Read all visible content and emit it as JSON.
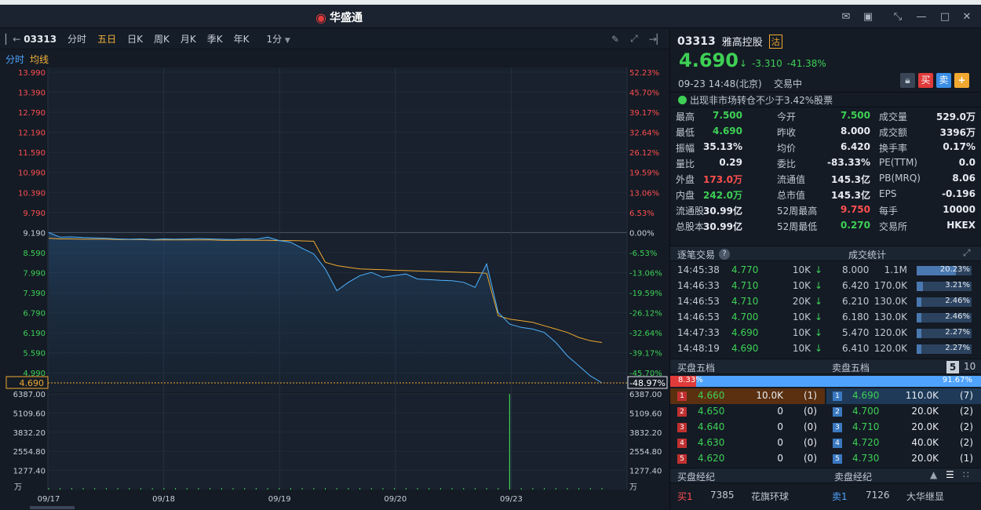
{
  "window": {
    "brand": "华盛通",
    "controls": [
      "mail-icon",
      "shirt-icon",
      "collapse-icon",
      "minimize-icon",
      "maximize-icon",
      "close-icon"
    ]
  },
  "toolbar": {
    "code": "03313",
    "tabs": [
      "分时",
      "五日",
      "日K",
      "周K",
      "月K",
      "季K",
      "年K"
    ],
    "active_tab": "五日",
    "interval": "1分",
    "sub_tabs": [
      "分时",
      "均线"
    ]
  },
  "chart_data": {
    "type": "line",
    "price_left_ticks": [
      "13.990",
      "13.390",
      "12.790",
      "12.190",
      "11.590",
      "10.990",
      "10.390",
      "9.790",
      "9.190",
      "8.590",
      "7.990",
      "7.390",
      "6.790",
      "6.190",
      "5.590",
      "4.990"
    ],
    "price_right_ticks": [
      "52.23%",
      "45.70%",
      "39.17%",
      "32.64%",
      "26.12%",
      "19.59%",
      "13.06%",
      "6.53%",
      "0.00%",
      "-6.53%",
      "-13.06%",
      "-19.59%",
      "-26.12%",
      "-32.64%",
      "-39.17%",
      "-45.70%"
    ],
    "current_price_label": "4.690",
    "current_pct_label": "-48.97%",
    "volume_ticks": [
      "6387.00",
      "5109.60",
      "3832.20",
      "2554.80",
      "1277.40"
    ],
    "volume_unit": "万",
    "x_labels": [
      "09/17",
      "09/18",
      "09/19",
      "09/20",
      "09/23"
    ],
    "ylim": [
      4.69,
      13.99
    ],
    "prev_close": 9.19,
    "series": [
      {
        "values": [
          9.19,
          9.05,
          9.06,
          9.04,
          9.03,
          9.02,
          9.0,
          8.99,
          9.0,
          8.98,
          9.0,
          8.99,
          9.0,
          9.01,
          9.0,
          8.99,
          8.98,
          9.0,
          8.99,
          9.05,
          8.95,
          8.9,
          8.72,
          8.55,
          8.1,
          7.45,
          7.7,
          7.9,
          8.0,
          7.85,
          7.9,
          7.95,
          7.8,
          7.78,
          7.76,
          7.75,
          7.7,
          7.55,
          8.25,
          6.8,
          6.45,
          6.35,
          6.3,
          6.2,
          5.9,
          5.5,
          5.2,
          4.9,
          4.69
        ]
      },
      {
        "values": [
          9.02,
          9.0,
          9.0,
          8.99,
          8.99,
          8.99,
          8.98,
          8.98,
          8.98,
          8.97,
          8.97,
          8.97,
          8.97,
          8.97,
          8.97,
          8.96,
          8.96,
          8.96,
          8.96,
          8.96,
          8.95,
          8.95,
          8.94,
          8.93,
          8.3,
          8.2,
          8.15,
          8.1,
          8.09,
          8.08,
          8.06,
          8.05,
          8.04,
          8.03,
          8.02,
          8.01,
          8.0,
          7.99,
          7.97,
          6.7,
          6.6,
          6.55,
          6.5,
          6.4,
          6.3,
          6.2,
          6.05,
          5.95,
          5.9
        ]
      }
    ],
    "volume_spike": 6387
  },
  "quote": {
    "code": "03313",
    "name": "雅高控股",
    "badge": "沽",
    "price": "4.690",
    "change": "-3.310",
    "change_pct": "-41.38%",
    "time": "09-23  14:48(北京)",
    "status": "交易中",
    "notice": "出现非市场转仓不少于3.42%股票",
    "buttons": [
      "买",
      "卖",
      "+"
    ],
    "stats": [
      [
        "最高",
        "7.500",
        "g",
        "今开",
        "7.500",
        "g",
        "成交量",
        "529.0万",
        "w"
      ],
      [
        "最低",
        "4.690",
        "g",
        "昨收",
        "8.000",
        "w",
        "成交额",
        "3396万",
        "w"
      ],
      [
        "振幅",
        "35.13%",
        "w",
        "均价",
        "6.420",
        "w",
        "换手率",
        "0.17%",
        "w"
      ],
      [
        "量比",
        "0.29",
        "w",
        "委比",
        "-83.33%",
        "w",
        "PE(TTM)",
        "0.0",
        "w"
      ],
      [
        "外盘",
        "173.0万",
        "r",
        "流通值",
        "145.3亿",
        "w",
        "PB(MRQ)",
        "8.06",
        "w"
      ],
      [
        "内盘",
        "242.0万",
        "g",
        "总市值",
        "145.3亿",
        "w",
        "EPS",
        "-0.196",
        "w"
      ],
      [
        "流通股",
        "30.99亿",
        "w",
        "52周最高",
        "9.750",
        "r",
        "每手",
        "10000",
        "w"
      ],
      [
        "总股本",
        "30.99亿",
        "w",
        "52周最低",
        "0.270",
        "g",
        "交易所",
        "HKEX",
        "w"
      ]
    ]
  },
  "trades": {
    "title": "逐笔交易",
    "stats_title": "成交统计",
    "rows": [
      [
        "14:45:38",
        "4.770",
        "10K"
      ],
      [
        "14:46:33",
        "4.710",
        "10K"
      ],
      [
        "14:46:53",
        "4.710",
        "20K"
      ],
      [
        "14:46:53",
        "4.700",
        "10K"
      ],
      [
        "14:47:33",
        "4.690",
        "10K"
      ],
      [
        "14:48:19",
        "4.690",
        "10K"
      ]
    ],
    "stats": [
      [
        "8.000",
        "1.1M",
        "20.23%",
        0.2023
      ],
      [
        "6.420",
        "170.0K",
        "3.21%",
        0.0321
      ],
      [
        "6.210",
        "130.0K",
        "2.46%",
        0.0246
      ],
      [
        "6.180",
        "130.0K",
        "2.46%",
        0.0246
      ],
      [
        "5.470",
        "120.0K",
        "2.27%",
        0.0227
      ],
      [
        "6.410",
        "120.0K",
        "2.27%",
        0.0227
      ]
    ]
  },
  "book": {
    "bid_title": "买盘五档",
    "ask_title": "卖盘五档",
    "depth_options": [
      "5",
      "10"
    ],
    "bid_pct": "8.33%",
    "ask_pct": "91.67%",
    "bid_ratio": 0.0833,
    "bids": [
      [
        "1",
        "4.660",
        "10.0K",
        "(1)"
      ],
      [
        "2",
        "4.650",
        "0",
        "(0)"
      ],
      [
        "3",
        "4.640",
        "0",
        "(0)"
      ],
      [
        "4",
        "4.630",
        "0",
        "(0)"
      ],
      [
        "5",
        "4.620",
        "0",
        "(0)"
      ]
    ],
    "asks": [
      [
        "1",
        "4.690",
        "110.0K",
        "(7)"
      ],
      [
        "2",
        "4.700",
        "20.0K",
        "(2)"
      ],
      [
        "3",
        "4.710",
        "20.0K",
        "(2)"
      ],
      [
        "4",
        "4.720",
        "40.0K",
        "(2)"
      ],
      [
        "5",
        "4.730",
        "20.0K",
        "(1)"
      ]
    ]
  },
  "brokers": {
    "bid_title": "买盘经纪",
    "ask_title": "卖盘经纪",
    "bid_row": [
      "买1",
      "7385",
      "花旗环球"
    ],
    "ask_row": [
      "卖1",
      "7126",
      "大华继显"
    ]
  }
}
